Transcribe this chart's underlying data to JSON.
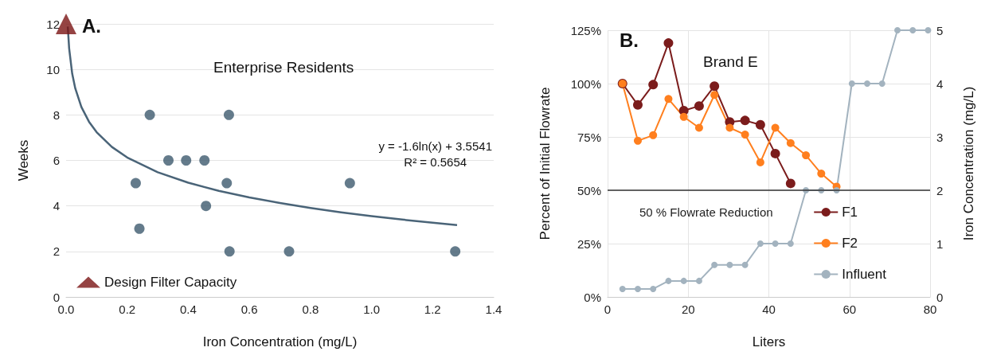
{
  "chart_data": [
    {
      "type": "scatter",
      "title": "Enterprise Residents",
      "xlabel": "Iron Concentration (mg/L)",
      "ylabel": "Weeks",
      "annotations": [
        "A.",
        "y = -1.6ln(x) + 3.5541\nR² = 0.5654"
      ],
      "xlim": [
        0,
        1.4
      ],
      "xticks": [
        {
          "value": 0,
          "label": "0.0"
        },
        0.2,
        0.4,
        0.6,
        0.8,
        {
          "value": 1,
          "label": "1.0"
        },
        1.2,
        1.4
      ],
      "ylim": [
        0,
        12
      ],
      "yticks": [
        0,
        2,
        4,
        6,
        8,
        10,
        12
      ],
      "grid": "y",
      "legend": "bottom left",
      "marker": "circle",
      "series": [
        {
          "color": "#3d5a6e",
          "x": [
            0.274,
            0.533,
            0.335,
            0.393,
            0.453,
            0.228,
            0.526,
            0.929,
            0.458,
            0.24,
            0.535,
            0.73,
            1.274
          ],
          "values": [
            8,
            8,
            6,
            6,
            6,
            5,
            5,
            5,
            4,
            3,
            2,
            2,
            2
          ]
        },
        {
          "type": "line",
          "color": "#4a6478",
          "marker": "none",
          "x": [
            0.0055,
            0.01,
            0.02,
            0.03,
            0.05,
            0.075,
            0.1,
            0.15,
            0.2,
            0.3,
            0.4,
            0.5,
            0.6,
            0.7,
            0.8,
            0.9,
            1.0,
            1.1,
            1.2,
            1.28
          ],
          "values": [
            11.88,
            10.92,
            9.81,
            9.17,
            8.35,
            7.7,
            7.24,
            6.59,
            6.13,
            5.48,
            5.02,
            4.66,
            4.37,
            4.13,
            3.91,
            3.72,
            3.55,
            3.4,
            3.26,
            3.16
          ]
        },
        {
          "type": "scatter",
          "name": "Design Filter Capacity",
          "color": "#7a1414",
          "marker": "triangle",
          "x": [
            0
          ],
          "values": [
            12
          ]
        }
      ]
    },
    {
      "type": "line",
      "title": "Brand E",
      "xlabel": "Liters",
      "ylabel": "Percent of Initial Flowrate",
      "y2label": "Iron Concentration (mg/L)",
      "annotations": [
        "B."
      ],
      "xlim": [
        0,
        80
      ],
      "xticks": [
        0,
        20,
        40,
        60,
        80
      ],
      "ylim": [
        0,
        125
      ],
      "yticks": [
        {
          "value": 0,
          "label": "0%"
        },
        {
          "value": 25,
          "label": "25%"
        },
        {
          "value": 50,
          "label": "50%"
        },
        {
          "value": 75,
          "label": "75%"
        },
        {
          "value": 100,
          "label": "100%"
        },
        {
          "value": 125,
          "label": "125%"
        }
      ],
      "y2lim": [
        0,
        5
      ],
      "y2ticks": [
        0,
        1,
        2,
        3,
        4,
        5
      ],
      "grid": true,
      "legend": "bottom right",
      "marker": "circle",
      "ref_lines": [
        {
          "axis": "y",
          "value": 50,
          "label": "50 % Flowrate Reduction",
          "color": "#333333"
        }
      ],
      "series": [
        {
          "name": "F1",
          "color": "#7b1c1c",
          "x": [
            3.7,
            7.5,
            11.3,
            15.1,
            18.9,
            22.7,
            26.5,
            30.3,
            34.1,
            37.9,
            41.6,
            45.4
          ],
          "values": [
            100,
            90,
            99.5,
            119,
            87.3,
            89.5,
            98.8,
            82,
            82.7,
            80.7,
            67.2,
            53.2
          ]
        },
        {
          "name": "F2",
          "color": "#ff7f1e",
          "x": [
            3.7,
            7.5,
            11.3,
            15.1,
            18.9,
            22.7,
            26.5,
            30.3,
            34.1,
            37.9,
            41.6,
            45.4,
            49.2,
            53.0,
            56.8
          ],
          "values": [
            100,
            73.2,
            75.8,
            92.8,
            84.4,
            79.3,
            94.7,
            79.3,
            76.1,
            63.1,
            79.3,
            72.1,
            66.4,
            57.8,
            51.7
          ]
        },
        {
          "name": "Influent",
          "color": "#a3b3bf",
          "axis": "y2",
          "x": [
            3.7,
            7.5,
            11.3,
            15.1,
            18.9,
            22.7,
            26.5,
            30.3,
            34.1,
            37.9,
            41.6,
            45.4,
            49.2,
            53.0,
            56.8,
            60.6,
            64.4,
            68.1,
            71.9,
            75.7,
            79.5
          ],
          "values": [
            0.15,
            0.15,
            0.15,
            0.3,
            0.3,
            0.3,
            0.6,
            0.6,
            0.6,
            1,
            1,
            1,
            2,
            2,
            2,
            4,
            4,
            4,
            5,
            5,
            5
          ]
        }
      ]
    }
  ]
}
